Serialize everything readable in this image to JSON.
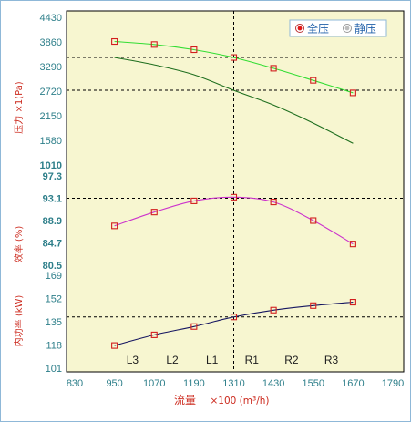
{
  "chart_data": {
    "type": "line",
    "x_axis": {
      "label": "流量",
      "unit": "×100 (m³/h)",
      "ticks": [
        830,
        950,
        1070,
        1190,
        1310,
        1430,
        1550,
        1670,
        1790
      ],
      "range": [
        830,
        1790
      ]
    },
    "operating_point_x": 1310,
    "region_labels": [
      "L3",
      "L2",
      "L1",
      "R1",
      "R2",
      "R3"
    ],
    "legend": {
      "position": "top-right",
      "items": [
        {
          "name": "全压",
          "color": "#e01818"
        },
        {
          "name": "静压",
          "color": "#888888"
        }
      ]
    },
    "panels": [
      {
        "id": "pressure",
        "ylabel": "压力 ×1(Pa)",
        "ticks": [
          1010,
          1580,
          2150,
          2720,
          3290,
          3860,
          4430
        ],
        "range": [
          1010,
          4430
        ],
        "reference_lines": [
          3500,
          2740
        ],
        "series": [
          {
            "name": "全压",
            "color": "#33dd33",
            "markers": true,
            "x": [
              950,
              1070,
              1190,
              1310,
              1430,
              1550,
              1670
            ],
            "values": [
              3870,
              3800,
              3680,
              3500,
              3250,
              2970,
              2680
            ]
          },
          {
            "name": "静压",
            "color": "#1e6e1e",
            "markers": false,
            "x": [
              950,
              1070,
              1190,
              1310,
              1430,
              1550,
              1670
            ],
            "values": [
              3500,
              3330,
              3100,
              2740,
              2400,
              1980,
              1510
            ]
          }
        ]
      },
      {
        "id": "efficiency",
        "ylabel": "效率 (%)",
        "ticks": [
          80.5,
          84.7,
          88.9,
          93.1,
          97.3
        ],
        "range": [
          80.5,
          97.3
        ],
        "reference_lines": [
          93.1
        ],
        "series": [
          {
            "name": "效率",
            "color": "#cc33cc",
            "markers": true,
            "x": [
              950,
              1070,
              1190,
              1310,
              1430,
              1550,
              1670
            ],
            "values": [
              87.9,
              90.5,
              92.6,
              93.3,
              92.4,
              88.9,
              84.5
            ]
          }
        ]
      },
      {
        "id": "power",
        "ylabel": "内功率 (kW)",
        "ticks": [
          101,
          118,
          135,
          152,
          169
        ],
        "range": [
          101,
          169
        ],
        "reference_lines": [
          138.5
        ],
        "series": [
          {
            "name": "内功率",
            "color": "#151560",
            "markers": true,
            "x": [
              950,
              1070,
              1190,
              1310,
              1430,
              1550,
              1670
            ],
            "values": [
              117.6,
              125.4,
              131.5,
              138.5,
              143.5,
              146.8,
              149.3
            ]
          }
        ]
      }
    ]
  }
}
